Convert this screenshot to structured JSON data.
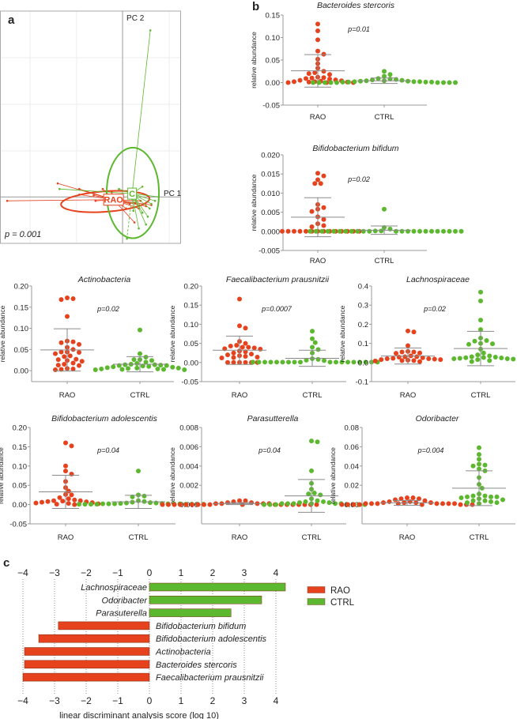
{
  "colors": {
    "RAO": "#e5421d",
    "CTRL": "#5cb82e",
    "errorbar": "#8a8a8a",
    "axis": "#9a9a9a"
  },
  "panel_labels": {
    "a": "a",
    "b": "b",
    "c": "c"
  },
  "chart_data": [
    {
      "id": "pcoa",
      "type": "scatter",
      "xlabel": "PC 1",
      "ylabel": "PC 2",
      "annotation": "p = 0.001",
      "xlim": [
        -0.68,
        0.32
      ],
      "ylim": [
        -0.2,
        0.8
      ],
      "groups": [
        {
          "name": "RAO",
          "label": "RAO",
          "centroid": [
            -0.05,
            -0.012
          ],
          "ellipse": {
            "center": [
              -0.096,
              -0.02
            ],
            "rx": 0.246,
            "ry": 0.044,
            "angle": -4
          },
          "points": [
            [
              -0.64,
              -0.017
            ],
            [
              -0.36,
              0.058
            ],
            [
              -0.24,
              0.034
            ],
            [
              -0.11,
              0.034
            ],
            [
              -0.16,
              0.007
            ],
            [
              -0.24,
              0.01
            ],
            [
              0.066,
              -0.11
            ],
            [
              0.02,
              -0.05
            ],
            [
              0.07,
              -0.026
            ],
            [
              0.1,
              -0.017
            ],
            [
              -0.15,
              -0.017
            ],
            [
              0.04,
              -0.03
            ],
            [
              0.13,
              -0.04
            ],
            [
              0.16,
              -0.035
            ],
            [
              0.09,
              -0.05
            ],
            [
              -0.06,
              0.02
            ]
          ]
        },
        {
          "name": "CTRL",
          "label": "C",
          "centroid": [
            0.053,
            0.014
          ],
          "ellipse": {
            "center": [
              0.057,
              0.017
            ],
            "rx": 0.145,
            "ry": 0.195,
            "angle": 0
          },
          "points": [
            [
              0.154,
              0.717
            ],
            [
              0.11,
              0.044
            ],
            [
              0.11,
              -0.068
            ],
            [
              0.13,
              -0.119
            ],
            [
              0.09,
              -0.136
            ],
            [
              0.15,
              -0.05
            ],
            [
              0.18,
              -0.017
            ],
            [
              -0.35,
              0.034
            ],
            [
              -0.02,
              0.034
            ],
            [
              0.024,
              -0.18
            ],
            [
              0.2,
              0.0
            ],
            [
              0.14,
              -0.085
            ],
            [
              0.06,
              -0.06
            ],
            [
              0.16,
              -0.03
            ]
          ]
        }
      ]
    },
    {
      "id": "b1",
      "type": "scatter",
      "title": "Bacteroides stercoris",
      "ylabel": "relative abundance",
      "pvalue": "p=0.01",
      "ylim": [
        -0.05,
        0.15
      ],
      "yticks": [
        "-0.05",
        "0.00",
        "0.05",
        "0.10",
        "0.15"
      ],
      "ytick_values": [
        -0.05,
        0,
        0.05,
        0.1,
        0.15
      ],
      "groups": [
        {
          "name": "RAO",
          "mean": 0.026,
          "sd": 0.036,
          "values": [
            0.13,
            0.115,
            0.095,
            0.07,
            0.063,
            0.052,
            0.042,
            0.032,
            0.025,
            0.022,
            0.02,
            0.018,
            0.012,
            0.011,
            0.01,
            0.009,
            0.008,
            0.006,
            0.005,
            0.004,
            0.003,
            0.002,
            0.002,
            0.001,
            0.001,
            0,
            0,
            0
          ]
        },
        {
          "name": "CTRL",
          "mean": 0.004,
          "sd": 0.006,
          "values": [
            0.025,
            0.018,
            0.014,
            0.009,
            0.008,
            0.007,
            0.006,
            0.005,
            0.004,
            0.004,
            0.003,
            0.003,
            0.002,
            0.002,
            0.002,
            0.001,
            0.001,
            0.001,
            0.001,
            0,
            0,
            0,
            0,
            0,
            0,
            0,
            0,
            0
          ]
        }
      ]
    },
    {
      "id": "b2",
      "type": "scatter",
      "title": "Bifidobacterium bifidum",
      "ylabel": "relative abundance",
      "pvalue": "p=0.02",
      "ylim": [
        -0.005,
        0.02
      ],
      "yticks": [
        "-0.005",
        "0.000",
        "0.005",
        "0.010",
        "0.015",
        "0.020"
      ],
      "ytick_values": [
        -0.005,
        0,
        0.005,
        0.01,
        0.015,
        0.02
      ],
      "groups": [
        {
          "name": "RAO",
          "mean": 0.0037,
          "sd": 0.0051,
          "values": [
            0.0152,
            0.0145,
            0.0135,
            0.0125,
            0.0125,
            0.007,
            0.0062,
            0.0058,
            0.0052,
            0.0038,
            0.0031,
            0.002,
            0.0015,
            0.0012,
            0,
            0,
            0,
            0,
            0,
            0,
            0,
            0,
            0,
            0,
            0,
            0,
            0,
            0
          ]
        },
        {
          "name": "CTRL",
          "mean": 0.0003,
          "sd": 0.0011,
          "values": [
            0.0058,
            0.001,
            0.0006,
            0.0001,
            0.0001,
            0,
            0,
            0,
            0,
            0,
            0,
            0,
            0,
            0,
            0,
            0,
            0,
            0,
            0,
            0,
            0,
            0,
            0,
            0,
            0,
            0,
            0,
            0
          ]
        }
      ]
    },
    {
      "id": "r2a",
      "type": "scatter",
      "title": "Actinobacteria",
      "ylabel": "relative abundance",
      "pvalue": "p=0.02",
      "ylim": [
        -0.026,
        0.2
      ],
      "yticks": [
        "0.00",
        "0.05",
        "0.10",
        "0.15",
        "0.20"
      ],
      "ytick_values": [
        0,
        0.05,
        0.1,
        0.15,
        0.2
      ],
      "groups": [
        {
          "name": "RAO",
          "mean": 0.049,
          "sd": 0.05,
          "values": [
            0.172,
            0.17,
            0.168,
            0.128,
            0.07,
            0.068,
            0.066,
            0.062,
            0.055,
            0.05,
            0.044,
            0.044,
            0.043,
            0.04,
            0.035,
            0.033,
            0.027,
            0.026,
            0.024,
            0.022,
            0.018,
            0.015,
            0.013,
            0.012,
            0.005,
            0.004,
            0.003,
            0.002
          ]
        },
        {
          "name": "CTRL",
          "mean": 0.015,
          "sd": 0.018,
          "values": [
            0.096,
            0.04,
            0.032,
            0.026,
            0.026,
            0.024,
            0.02,
            0.017,
            0.015,
            0.014,
            0.014,
            0.013,
            0.012,
            0.012,
            0.011,
            0.01,
            0.009,
            0.008,
            0.007,
            0.006,
            0.006,
            0.005,
            0.004,
            0.004,
            0.003,
            0.003,
            0.002,
            0.002
          ]
        }
      ]
    },
    {
      "id": "r2b",
      "type": "scatter",
      "title": "Faecalibacterium prausnitzii",
      "ylabel": "relative abundance",
      "pvalue": "p=0.0007",
      "ylim": [
        -0.05,
        0.2
      ],
      "yticks": [
        "-0.05",
        "0.00",
        "0.05",
        "0.10",
        "0.15",
        "0.20"
      ],
      "ytick_values": [
        -0.05,
        0,
        0.05,
        0.1,
        0.15,
        0.2
      ],
      "groups": [
        {
          "name": "RAO",
          "mean": 0.032,
          "sd": 0.037,
          "values": [
            0.166,
            0.096,
            0.09,
            0.055,
            0.05,
            0.045,
            0.043,
            0.04,
            0.04,
            0.038,
            0.036,
            0.035,
            0.03,
            0.028,
            0.025,
            0.022,
            0.02,
            0.018,
            0.016,
            0.014,
            0.013,
            0.012,
            0,
            0,
            0,
            0,
            0,
            0
          ]
        },
        {
          "name": "CTRL",
          "mean": 0.011,
          "sd": 0.021,
          "values": [
            0.082,
            0.062,
            0.052,
            0.04,
            0.034,
            0.025,
            0.01,
            0.008,
            0.006,
            0.005,
            0.001,
            0.001,
            0.001,
            0.001,
            0.001,
            0.001,
            0.001,
            0.001,
            0.001,
            0.001,
            0.001,
            0.001,
            0.001,
            0.001,
            0.001,
            0.001,
            0.001,
            0.001
          ]
        }
      ]
    },
    {
      "id": "r2c",
      "type": "scatter",
      "title": "Lachnospiraceae",
      "ylabel": "relative abundance",
      "pvalue": "p=0.02",
      "ylim": [
        -0.1,
        0.4
      ],
      "yticks": [
        "-0.1",
        "0.0",
        "0.1",
        "0.2",
        "0.3",
        "0.4"
      ],
      "ytick_values": [
        -0.1,
        0,
        0.1,
        0.2,
        0.3,
        0.4
      ],
      "groups": [
        {
          "name": "RAO",
          "mean": 0.034,
          "sd": 0.042,
          "values": [
            0.165,
            0.16,
            0.088,
            0.058,
            0.055,
            0.055,
            0.05,
            0.048,
            0.035,
            0.03,
            0.03,
            0.028,
            0.025,
            0.022,
            0.02,
            0.02,
            0.018,
            0.015,
            0.015,
            0.012,
            0.01,
            0.01,
            0.008,
            0.005
          ]
        },
        {
          "name": "CTRL",
          "mean": 0.073,
          "sd": 0.09,
          "values": [
            0.368,
            0.322,
            0.222,
            0.172,
            0.128,
            0.115,
            0.112,
            0.1,
            0.098,
            0.095,
            0.07,
            0.05,
            0.04,
            0.035,
            0.03,
            0.028,
            0.026,
            0.025,
            0.024,
            0.022,
            0.02,
            0.02,
            0.018,
            0.015,
            0.01,
            0.005
          ]
        }
      ]
    },
    {
      "id": "r3a",
      "type": "scatter",
      "title": "Bifidobacterium adolescentis",
      "ylabel": "relative abundance",
      "pvalue": "p=0.04",
      "ylim": [
        -0.05,
        0.2
      ],
      "yticks": [
        "-0.05",
        "0.00",
        "0.05",
        "0.10",
        "0.15",
        "0.20"
      ],
      "ytick_values": [
        -0.05,
        0,
        0.05,
        0.1,
        0.15,
        0.2
      ],
      "groups": [
        {
          "name": "RAO",
          "mean": 0.033,
          "sd": 0.043,
          "values": [
            0.16,
            0.152,
            0.1,
            0.087,
            0.079,
            0.06,
            0.044,
            0.035,
            0.026,
            0.025,
            0.018,
            0.015,
            0.012,
            0.01,
            0.01,
            0.009,
            0.008,
            0.007,
            0.006,
            0.005,
            0.004,
            0.003,
            0.002,
            0.001,
            0
          ]
        },
        {
          "name": "CTRL",
          "mean": 0.007,
          "sd": 0.017,
          "values": [
            0.087,
            0.025,
            0.022,
            0.02,
            0.01,
            0.008,
            0.006,
            0.005,
            0.004,
            0.004,
            0.003,
            0.003,
            0.002,
            0.002,
            0.002,
            0.002,
            0.002,
            0.002,
            0.001,
            0.001,
            0.001,
            0.001,
            0.001,
            0.001,
            0.001,
            0.001
          ]
        }
      ]
    },
    {
      "id": "r3b",
      "type": "scatter",
      "title": "Parasutterella",
      "ylabel": "relative abundance",
      "pvalue": "p=0.04",
      "ylim": [
        -0.002,
        0.008
      ],
      "yticks": [
        "0.000",
        "0.002",
        "0.004",
        "0.006",
        "0.008"
      ],
      "ytick_values": [
        0,
        0.002,
        0.004,
        0.006,
        0.008
      ],
      "groups": [
        {
          "name": "RAO",
          "mean": 0.0001,
          "sd": 0.0001,
          "values": [
            0.0004,
            0.0004,
            0.0003,
            0.0002,
            0.0002,
            0.0001,
            0.0001,
            0.0001,
            0.0001,
            0.0001,
            0,
            0,
            0,
            0,
            0,
            0,
            0,
            0,
            0,
            0,
            0,
            0,
            0,
            0,
            0,
            0,
            0,
            0
          ]
        },
        {
          "name": "CTRL",
          "mean": 0.0009,
          "sd": 0.0017,
          "values": [
            0.0066,
            0.0065,
            0.0035,
            0.0022,
            0.0016,
            0.0012,
            0.0011,
            0.001,
            0.0006,
            0.0004,
            0.0003,
            0.0003,
            0.0002,
            0.0002,
            0.0001,
            0.0001,
            0.0001,
            0.0001,
            0.0001,
            0.0001,
            0,
            0,
            0,
            0,
            0,
            0,
            0
          ]
        }
      ]
    },
    {
      "id": "r3c",
      "type": "scatter",
      "title": "Odoribacter",
      "ylabel": "relative abundance",
      "pvalue": "p=0.004",
      "ylim": [
        -0.02,
        0.08
      ],
      "yticks": [
        "0.00",
        "0.02",
        "0.04",
        "0.06",
        "0.08"
      ],
      "ytick_values": [
        0,
        0.02,
        0.04,
        0.06,
        0.08
      ],
      "groups": [
        {
          "name": "RAO",
          "mean": 0.0018,
          "sd": 0.0025,
          "values": [
            0.007,
            0.007,
            0.006,
            0.006,
            0.005,
            0.004,
            0.003,
            0.003,
            0.002,
            0.002,
            0.002,
            0.002,
            0.001,
            0.001,
            0.001,
            0.001,
            0.001,
            0.001,
            0.001,
            0.001,
            0,
            0,
            0,
            0,
            0,
            0,
            0,
            0
          ]
        },
        {
          "name": "CTRL",
          "mean": 0.017,
          "sd": 0.018,
          "values": [
            0.059,
            0.052,
            0.047,
            0.042,
            0.041,
            0.04,
            0.037,
            0.035,
            0.028,
            0.021,
            0.017,
            0.011,
            0.009,
            0.009,
            0.008,
            0.008,
            0.008,
            0.007,
            0.006,
            0.005,
            0.004,
            0.004,
            0.003,
            0.002,
            0.002,
            0.001
          ]
        }
      ]
    },
    {
      "id": "lda",
      "type": "bar",
      "xlabel": "linear discriminant analysis score (log 10)",
      "xlim": [
        -4,
        4
      ],
      "xticks": [
        "−4",
        "−3",
        "−2",
        "−1",
        "0",
        "1",
        "2",
        "3",
        "4"
      ],
      "xtick_values": [
        -4,
        -3,
        -2,
        -1,
        0,
        1,
        2,
        3,
        4
      ],
      "legend": [
        {
          "name": "RAO",
          "label": "RAO"
        },
        {
          "name": "CTRL",
          "label": "CTRL"
        }
      ],
      "legend_position": "top-right",
      "categories": [
        "Lachnospiraceae",
        "Odoribacter",
        "Parasuterella",
        "Bifidobacterium bifidum",
        "Bifidobacterium adolescentis",
        "Actinobacteria",
        "Bacteroides stercoris",
        "Faecalibacterium prausnitzii"
      ],
      "values": [
        4.3,
        3.55,
        2.58,
        -2.88,
        -3.5,
        -3.95,
        -3.95,
        -4.0
      ],
      "groups": [
        "CTRL",
        "CTRL",
        "CTRL",
        "RAO",
        "RAO",
        "RAO",
        "RAO",
        "RAO"
      ]
    }
  ]
}
